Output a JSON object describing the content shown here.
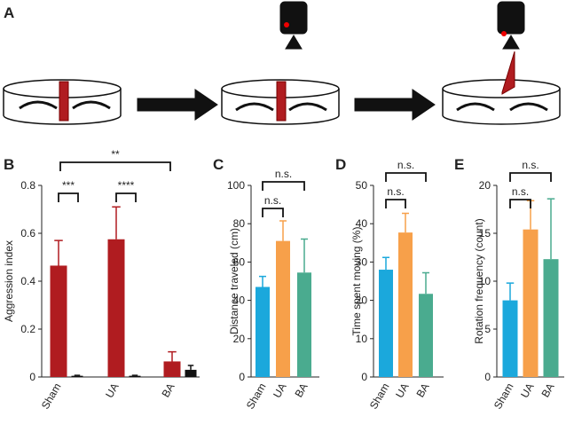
{
  "panel_a": {
    "label": "A"
  },
  "chart_data": [
    {
      "type": "bar",
      "panel": "B",
      "ylabel": "Aggression index",
      "categories": [
        "Sham",
        "UA",
        "BA"
      ],
      "series": [
        {
          "color": "#b01c20",
          "values": [
            0.465,
            0.575,
            0.065
          ],
          "errors": [
            0.105,
            0.135,
            0.04
          ]
        },
        {
          "color": "#111111",
          "values": [
            0.005,
            0.005,
            0.03
          ],
          "errors": [
            0.002,
            0.002,
            0.018
          ]
        }
      ],
      "ylim": [
        0,
        0.8
      ],
      "yticks": [
        0,
        0.2,
        0.4,
        0.6,
        0.8
      ],
      "annotations": [
        "***",
        "****",
        "**"
      ]
    },
    {
      "type": "bar",
      "panel": "C",
      "ylabel": "Distance traveled (cm)",
      "categories": [
        "Sham",
        "UA",
        "BA"
      ],
      "colors": [
        "#1ba8dc",
        "#f7a04a",
        "#4aab8f"
      ],
      "values": [
        47,
        71,
        54.5
      ],
      "errors": [
        5.5,
        10.5,
        17.5
      ],
      "ylim": [
        0,
        100
      ],
      "yticks": [
        0,
        20,
        40,
        60,
        80,
        100
      ],
      "annotations": [
        "n.s.",
        "n.s."
      ]
    },
    {
      "type": "bar",
      "panel": "D",
      "ylabel": "Time spent moving (%)",
      "categories": [
        "Sham",
        "UA",
        "BA"
      ],
      "colors": [
        "#1ba8dc",
        "#f7a04a",
        "#4aab8f"
      ],
      "values": [
        28,
        37.7,
        21.7
      ],
      "errors": [
        3.2,
        5,
        5.5
      ],
      "ylim": [
        0,
        50
      ],
      "yticks": [
        0,
        10,
        20,
        30,
        40,
        50
      ],
      "annotations": [
        "n.s.",
        "n.s."
      ]
    },
    {
      "type": "bar",
      "panel": "E",
      "ylabel": "Rotation frequency (count)",
      "categories": [
        "Sham",
        "UA",
        "BA"
      ],
      "colors": [
        "#1ba8dc",
        "#f7a04a",
        "#4aab8f"
      ],
      "values": [
        8,
        15.4,
        12.3
      ],
      "errors": [
        1.8,
        3,
        6.3
      ],
      "ylim": [
        0,
        20
      ],
      "yticks": [
        0,
        5,
        10,
        15,
        20
      ],
      "annotations": [
        "n.s.",
        "n.s."
      ]
    }
  ]
}
